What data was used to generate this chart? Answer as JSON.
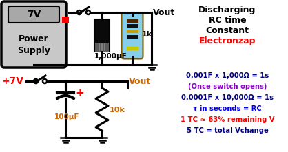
{
  "bg_color": "#ffffff",
  "title_lines": [
    "Discharging",
    "RC time",
    "Constant"
  ],
  "title_color": "#000000",
  "electronzap_color": "#ff0000",
  "formula_lines": [
    {
      "text": "0.001F x 1,000Ω = 1s",
      "color": "#000080"
    },
    {
      "text": "(Once switch opens)",
      "color": "#9400d3"
    },
    {
      "text": "0.0001F x 10,000Ω = 1s",
      "color": "#000080"
    },
    {
      "text": "τ in seconds = RC",
      "color": "#0000ff"
    },
    {
      "text": "1 TC ≈ 63% remaining V",
      "color": "#ff0000"
    },
    {
      "text": "5 TC = total Vchange",
      "color": "#000080"
    }
  ],
  "ps_label_7v": "7V",
  "ps_label_power": "Power",
  "ps_label_supply": "Supply",
  "cap1_label": "1,000μF",
  "res1_label": "1k",
  "vout1_label": "Vout",
  "v2_label": "+7V",
  "cap2_label": "100μF",
  "res2_label": "10k",
  "vout2_label": "Vout",
  "orange_color": "#cc6600",
  "red_color": "#ff0000",
  "black_color": "#000000",
  "gray_fill": "#c8c8c8",
  "gray_inner": "#a8a8a8"
}
